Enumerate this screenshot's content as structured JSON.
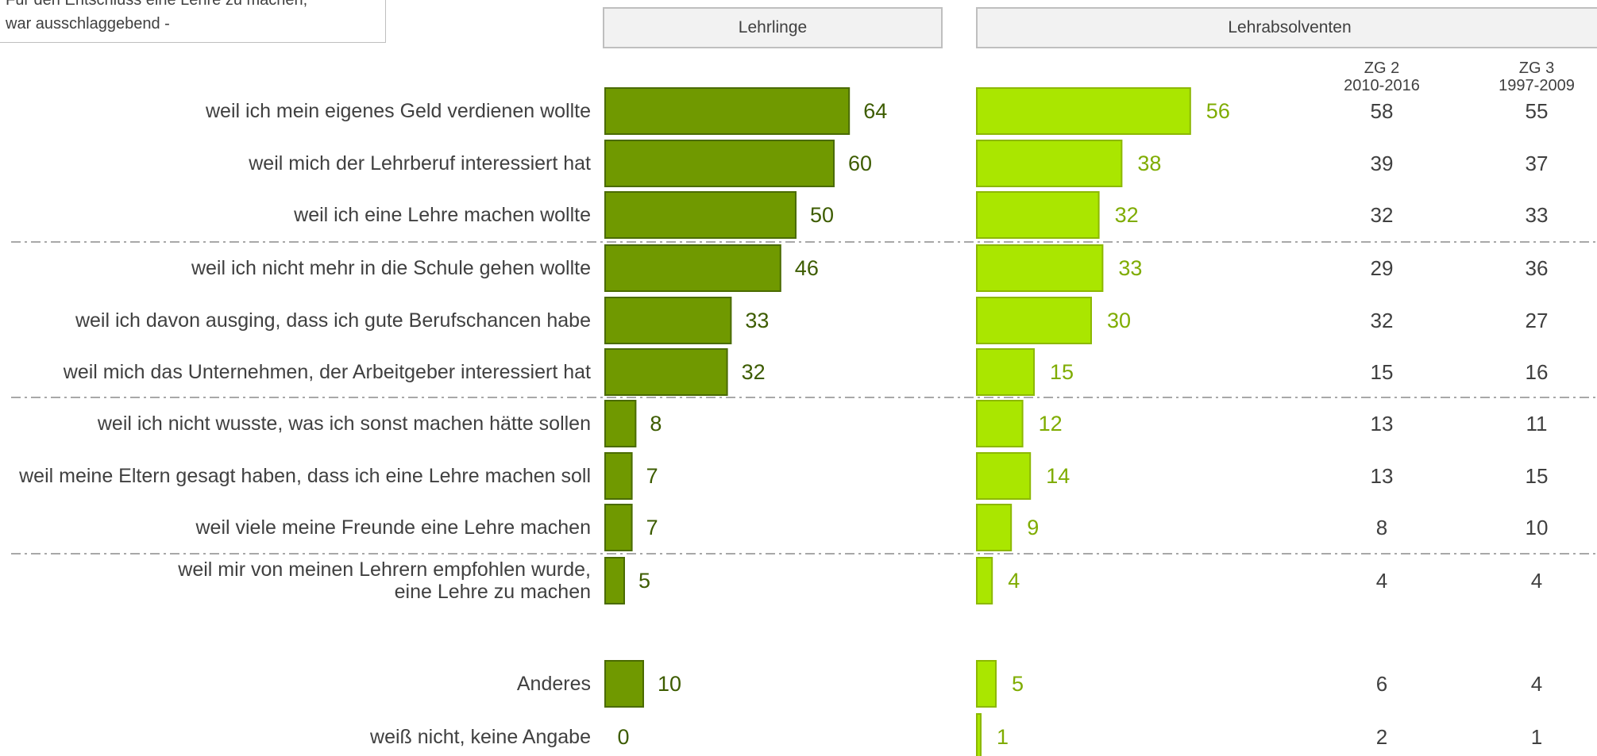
{
  "note": {
    "line1": "Für den Entschluss eine Lehre zu machen,",
    "line2": "war ausschlaggebend -"
  },
  "headers": {
    "apprentices": "Lehrlinge",
    "graduates": "Lehrabsolventen"
  },
  "colors": {
    "apprentices_fill": "#709900",
    "apprentices_stroke": "#4a6b00",
    "apprentices_label": "#3d5c00",
    "graduates_fill": "#aae600",
    "graduates_stroke": "#8cb800",
    "graduates_label": "#7fac00",
    "text": "#404040",
    "divider": "#8c8c8c"
  },
  "chart_data": {
    "type": "bar",
    "orientation": "horizontal",
    "categories": [
      [
        "weil ich mein eigenes Geld verdienen wollte"
      ],
      [
        "weil mich der Lehrberuf interessiert hat"
      ],
      [
        "weil ich eine Lehre machen wollte"
      ],
      [
        "weil ich nicht mehr in die Schule gehen wollte"
      ],
      [
        "weil ich davon ausging, dass ich gute Berufschancen habe"
      ],
      [
        "weil mich das Unternehmen, der Arbeitgeber interessiert hat"
      ],
      [
        "weil ich nicht wusste, was ich sonst machen hätte sollen"
      ],
      [
        "weil meine Eltern gesagt haben, dass ich eine Lehre machen soll"
      ],
      [
        "weil viele meine Freunde eine Lehre machen"
      ],
      [
        "weil mir von meinen Lehrern empfohlen wurde,",
        "eine Lehre zu machen"
      ],
      [
        "Anderes"
      ],
      [
        "weiß nicht, keine Angabe"
      ]
    ],
    "series": [
      {
        "name": "Lehrlinge",
        "values": [
          64,
          60,
          50,
          46,
          33,
          32,
          8,
          7,
          7,
          5,
          10,
          0
        ]
      },
      {
        "name": "Lehrabsolventen",
        "values": [
          56,
          38,
          32,
          33,
          30,
          15,
          12,
          14,
          9,
          4,
          5,
          1
        ]
      }
    ],
    "columns": [
      {
        "label": [
          "ZG 2",
          "2010-2016"
        ],
        "values": [
          58,
          39,
          32,
          29,
          32,
          15,
          13,
          13,
          8,
          4,
          6,
          2
        ]
      },
      {
        "label": [
          "ZG 3",
          "1997-2009"
        ],
        "values": [
          55,
          37,
          33,
          36,
          27,
          16,
          11,
          15,
          10,
          4,
          4,
          1
        ]
      }
    ],
    "group_breaks_after": [
      2,
      5,
      8
    ]
  }
}
